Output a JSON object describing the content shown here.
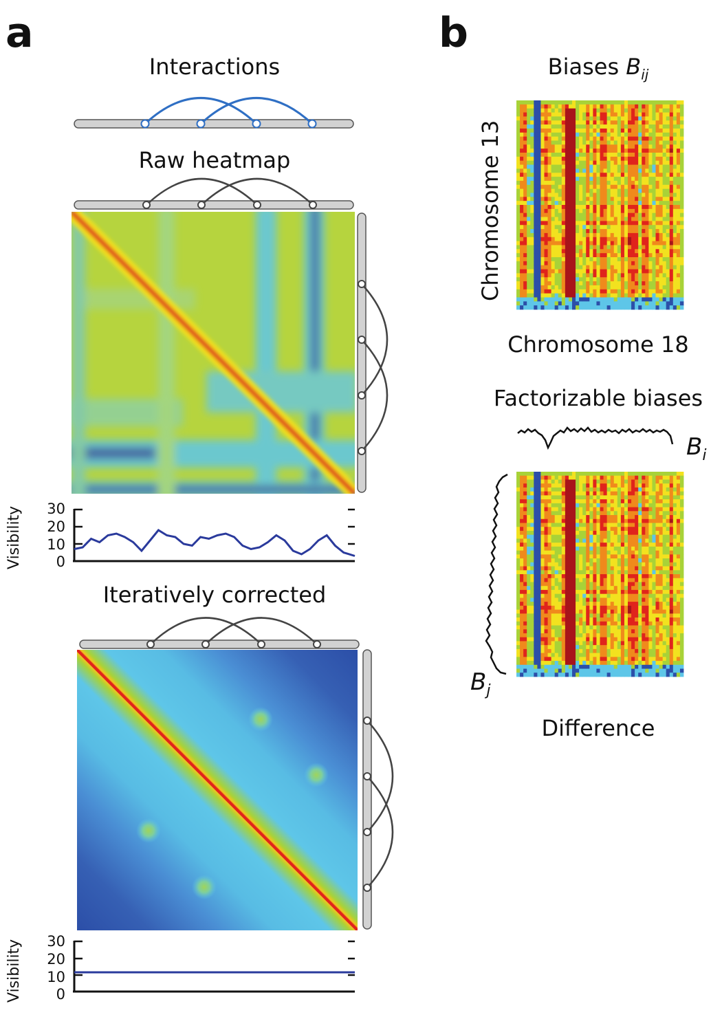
{
  "panels": {
    "a": "a",
    "b": "b"
  },
  "panel_a": {
    "interactions_title": "Interactions",
    "raw_title": "Raw heatmap",
    "corrected_title": "Iteratively corrected",
    "visibility_label": "Visibility",
    "visibility_ticks": [
      "30",
      "20",
      "10",
      "0"
    ]
  },
  "panel_b": {
    "biases_title_text": "Biases ",
    "biases_title_symbol": "B",
    "biases_title_sub": "ij",
    "y_axis_label": "Chromosome 13",
    "x_axis_label": "Chromosome 18",
    "factorizable_title": "Factorizable biases",
    "bi_symbol": "B",
    "bi_sub": "i",
    "bj_symbol": "B",
    "bj_sub": "j",
    "difference_title": "Difference"
  },
  "colors": {
    "arc_blue": "#2f6fc4",
    "arc_gray": "#444444",
    "visibility_line": "#2a3a9c",
    "heat_red": "#e0241c",
    "heat_yellow": "#f2e21f",
    "heat_green": "#a8d238",
    "heat_cyan": "#5ec6e8",
    "heat_blue": "#2c4fa8"
  },
  "chart_data": [
    {
      "type": "line",
      "ylim": [
        0,
        30
      ],
      "yticks": [
        0,
        10,
        20,
        30
      ],
      "ylabel": "Visibility",
      "x": [
        0,
        0.03,
        0.06,
        0.09,
        0.12,
        0.15,
        0.18,
        0.21,
        0.24,
        0.27,
        0.3,
        0.33,
        0.36,
        0.39,
        0.42,
        0.45,
        0.48,
        0.51,
        0.54,
        0.57,
        0.6,
        0.63,
        0.66,
        0.69,
        0.72,
        0.75,
        0.78,
        0.81,
        0.84,
        0.87,
        0.9,
        0.93,
        0.96,
        1.0
      ],
      "values": [
        7,
        8,
        13,
        11,
        15,
        16,
        14,
        11,
        6,
        12,
        18,
        15,
        14,
        10,
        9,
        14,
        13,
        15,
        16,
        14,
        9,
        7,
        8,
        11,
        15,
        12,
        6,
        4,
        7,
        12,
        15,
        9,
        5,
        3
      ]
    },
    {
      "type": "line",
      "ylim": [
        0,
        30
      ],
      "yticks": [
        0,
        10,
        20,
        30
      ],
      "ylabel": "Visibility",
      "x": [
        0,
        1
      ],
      "values": [
        11.5,
        11.5
      ]
    }
  ]
}
